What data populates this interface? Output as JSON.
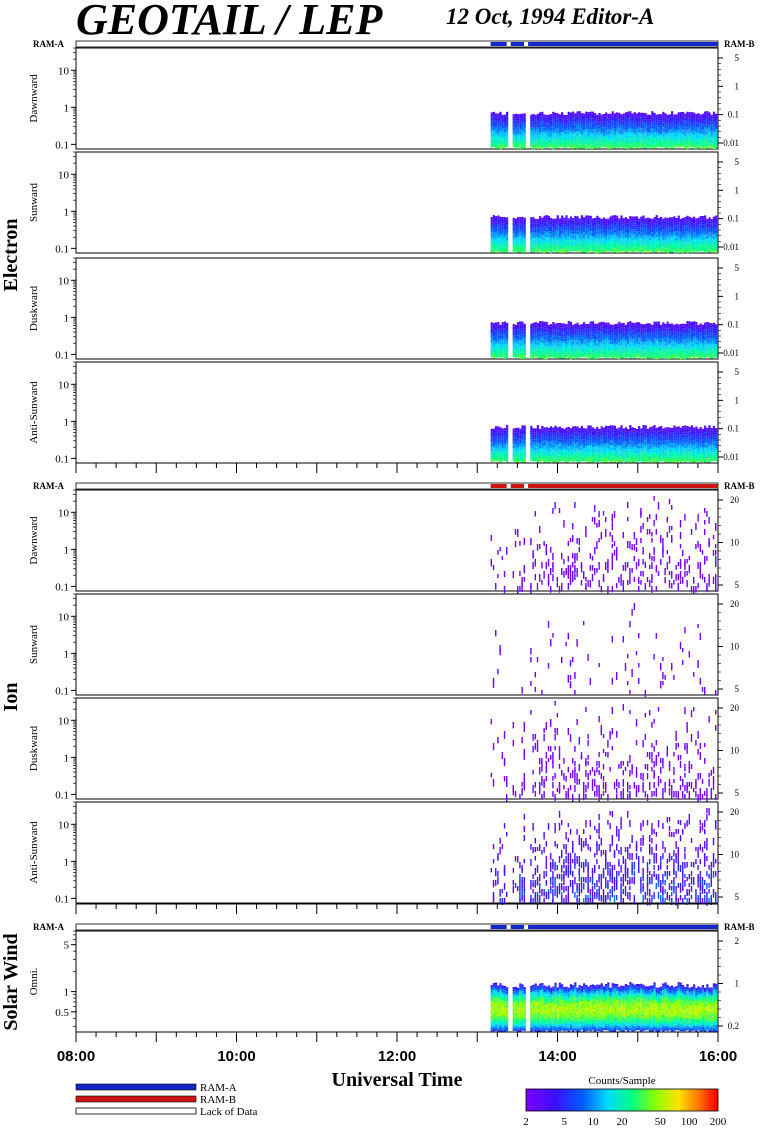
{
  "title": "GEOTAIL / LEP",
  "subtitle": "12 Oct, 1994   Editor-A",
  "xlabel": "Universal Time",
  "xticks": [
    "08:00",
    "10:00",
    "12:00",
    "14:00",
    "16:00"
  ],
  "ram_a": "RAM-A",
  "ram_b": "RAM-B",
  "legend": {
    "ram_a": "RAM-A",
    "ram_b": "RAM-B",
    "lack": "Lack of Data"
  },
  "colorbar": {
    "title": "Counts/Sample",
    "ticks": [
      "2",
      "5",
      "10",
      "20",
      "50",
      "100",
      "200"
    ]
  },
  "group_labels": {
    "electron": "Electron",
    "ion": "Ion",
    "solar_wind": "Solar Wind"
  },
  "colors": {
    "ram_a": "#1427c8",
    "ram_b": "#cc1414",
    "lack": "#ffffff"
  },
  "chart_data": {
    "type": "heatmap",
    "x_range": [
      "08:00",
      "16:00"
    ],
    "data_start": "13:10",
    "data_gaps": [
      [
        "13:22",
        "13:25"
      ],
      [
        "13:35",
        "13:38"
      ]
    ],
    "groups": [
      {
        "name": "Electron",
        "status_bar": {
          "left": "RAM-A",
          "right": "RAM-B",
          "mode": "RAM-A",
          "from": "13:10"
        },
        "panels": [
          {
            "label": "Dawnward",
            "left_ticks": [
              "0.1",
              "1",
              "10"
            ],
            "right_ticks": [
              "0.01",
              "0.1",
              "1",
              "5"
            ]
          },
          {
            "label": "Sunward",
            "left_ticks": [
              "0.1",
              "1",
              "10"
            ],
            "right_ticks": [
              "0.01",
              "0.1",
              "1",
              "5"
            ]
          },
          {
            "label": "Duskward",
            "left_ticks": [
              "0.1",
              "1",
              "10"
            ],
            "right_ticks": [
              "0.01",
              "0.1",
              "1",
              "5"
            ]
          },
          {
            "label": "Anti-Sunward",
            "left_ticks": [
              "0.1",
              "1",
              "10"
            ],
            "right_ticks": [
              "0.01",
              "0.1",
              "1",
              "5"
            ]
          }
        ]
      },
      {
        "name": "Ion",
        "status_bar": {
          "left": "RAM-A",
          "right": "RAM-B",
          "mode": "RAM-B",
          "from": "13:10"
        },
        "panels": [
          {
            "label": "Dawnward",
            "left_ticks": [
              "0.1",
              "1",
              "10"
            ],
            "right_ticks": [
              "5",
              "10",
              "20"
            ]
          },
          {
            "label": "Sunward",
            "left_ticks": [
              "0.1",
              "1",
              "10"
            ],
            "right_ticks": [
              "5",
              "10",
              "20"
            ]
          },
          {
            "label": "Duskward",
            "left_ticks": [
              "0.1",
              "1",
              "10"
            ],
            "right_ticks": [
              "5",
              "10",
              "20"
            ]
          },
          {
            "label": "Anti-Sunward",
            "left_ticks": [
              "0.1",
              "1",
              "10"
            ],
            "right_ticks": [
              "5",
              "10",
              "20"
            ]
          }
        ]
      },
      {
        "name": "Solar Wind",
        "status_bar": {
          "left": "RAM-A",
          "right": "RAM-B",
          "mode": "RAM-A",
          "from": "13:10"
        },
        "panels": [
          {
            "label": "Omni.",
            "left_ticks": [
              "0.5",
              "1",
              "5"
            ],
            "right_ticks": [
              "0.2",
              "1",
              "2"
            ]
          }
        ]
      }
    ],
    "color_scale": {
      "min": 2,
      "max": 200,
      "log": true,
      "unit": "Counts/Sample"
    }
  }
}
